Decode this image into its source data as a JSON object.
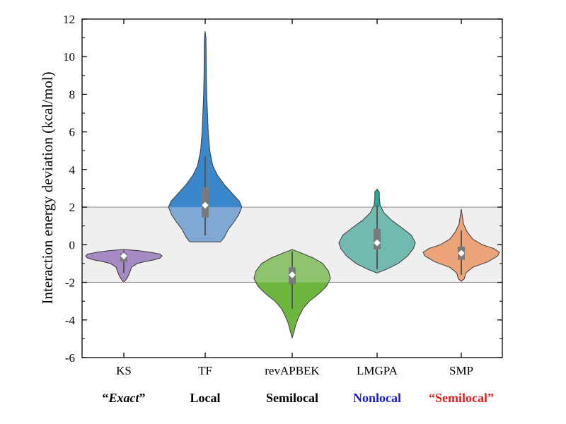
{
  "chart_data": {
    "type": "violin",
    "ylabel": "Interaction energy deviation (kcal/mol)",
    "xlabel": "",
    "ylim": [
      -6,
      12
    ],
    "yticks": [
      -6,
      -4,
      -2,
      0,
      2,
      4,
      6,
      8,
      10,
      12
    ],
    "shaded_band": [
      -2,
      2
    ],
    "categories": [
      "KS",
      "TF",
      "revAPBEK",
      "LMGPA",
      "SMP"
    ],
    "group_labels": [
      {
        "text_parts": [
          "“",
          "Exact",
          "”"
        ],
        "italic_part": 1,
        "color": "#000000"
      },
      {
        "text_parts": [
          "Local"
        ],
        "italic_part": -1,
        "color": "#000000"
      },
      {
        "text_parts": [
          "Semilocal"
        ],
        "italic_part": -1,
        "color": "#000000"
      },
      {
        "text_parts": [
          "Nonlocal"
        ],
        "italic_part": -1,
        "color": "#1a1ad8"
      },
      {
        "text_parts": [
          "“Semilocal”"
        ],
        "italic_part": -1,
        "color": "#e0201f"
      }
    ],
    "series": [
      {
        "category": "KS",
        "color": "#a58ac4",
        "color_outside": "#8f6fb8",
        "min": -1.95,
        "max": -0.25,
        "q1": -0.9,
        "median": -0.65,
        "q3": -0.45,
        "mean": -0.6,
        "whisker_low": -1.5,
        "whisker_high": -0.3,
        "density": [
          [
            -1.95,
            0.02
          ],
          [
            -1.8,
            0.08
          ],
          [
            -1.6,
            0.13
          ],
          [
            -1.4,
            0.17
          ],
          [
            -1.2,
            0.2
          ],
          [
            -1.0,
            0.35
          ],
          [
            -0.9,
            0.55
          ],
          [
            -0.8,
            0.8
          ],
          [
            -0.7,
            0.95
          ],
          [
            -0.6,
            1.0
          ],
          [
            -0.5,
            0.95
          ],
          [
            -0.4,
            0.7
          ],
          [
            -0.32,
            0.4
          ],
          [
            -0.25,
            0.0
          ]
        ]
      },
      {
        "category": "TF",
        "color": "#7fa9d4",
        "color_outside": "#3b87cc",
        "min": 0.15,
        "max": 11.35,
        "q1": 1.45,
        "median": 2.1,
        "q3": 3.05,
        "mean": 2.1,
        "whisker_low": 0.5,
        "whisker_high": 4.7,
        "density": [
          [
            0.15,
            0.4
          ],
          [
            0.4,
            0.5
          ],
          [
            0.8,
            0.6
          ],
          [
            1.2,
            0.75
          ],
          [
            1.6,
            0.88
          ],
          [
            2.0,
            0.96
          ],
          [
            2.3,
            0.9
          ],
          [
            2.7,
            0.72
          ],
          [
            3.2,
            0.5
          ],
          [
            3.7,
            0.32
          ],
          [
            4.2,
            0.2
          ],
          [
            5.0,
            0.12
          ],
          [
            6.0,
            0.08
          ],
          [
            7.0,
            0.06
          ],
          [
            8.0,
            0.04
          ],
          [
            9.0,
            0.03
          ],
          [
            10.0,
            0.025
          ],
          [
            11.0,
            0.02
          ],
          [
            11.35,
            0.0
          ]
        ]
      },
      {
        "category": "revAPBEK",
        "color": "#8fc46e",
        "color_outside": "#6db73f",
        "min": -4.95,
        "max": -0.25,
        "q1": -2.1,
        "median": -1.6,
        "q3": -1.2,
        "mean": -1.6,
        "whisker_low": -3.4,
        "whisker_high": -0.35,
        "density": [
          [
            -4.95,
            0.0
          ],
          [
            -4.6,
            0.05
          ],
          [
            -4.2,
            0.1
          ],
          [
            -3.8,
            0.18
          ],
          [
            -3.4,
            0.28
          ],
          [
            -3.0,
            0.45
          ],
          [
            -2.6,
            0.7
          ],
          [
            -2.2,
            0.9
          ],
          [
            -1.8,
            1.0
          ],
          [
            -1.4,
            0.95
          ],
          [
            -1.0,
            0.8
          ],
          [
            -0.7,
            0.55
          ],
          [
            -0.45,
            0.25
          ],
          [
            -0.25,
            0.0
          ]
        ]
      },
      {
        "category": "LMGPA",
        "color": "#72b9b0",
        "color_outside": "#2ba49a",
        "min": -1.5,
        "max": 2.95,
        "q1": -0.25,
        "median": 0.1,
        "q3": 0.85,
        "mean": 0.1,
        "whisker_low": -1.3,
        "whisker_high": 2.1,
        "density": [
          [
            -1.5,
            0.0
          ],
          [
            -1.3,
            0.25
          ],
          [
            -1.0,
            0.55
          ],
          [
            -0.6,
            0.8
          ],
          [
            -0.2,
            0.95
          ],
          [
            0.1,
            1.0
          ],
          [
            0.5,
            0.9
          ],
          [
            0.9,
            0.65
          ],
          [
            1.3,
            0.38
          ],
          [
            1.7,
            0.18
          ],
          [
            2.1,
            0.08
          ],
          [
            2.5,
            0.06
          ],
          [
            2.8,
            0.06
          ],
          [
            2.95,
            0.0
          ]
        ]
      },
      {
        "category": "SMP",
        "color": "#eda378",
        "color_outside": "#e5894f",
        "min": -1.95,
        "max": 1.9,
        "q1": -0.8,
        "median": -0.45,
        "q3": -0.1,
        "mean": -0.45,
        "whisker_low": -1.6,
        "whisker_high": 0.75,
        "density": [
          [
            -1.95,
            0.0
          ],
          [
            -1.8,
            0.08
          ],
          [
            -1.5,
            0.12
          ],
          [
            -1.2,
            0.3
          ],
          [
            -0.9,
            0.7
          ],
          [
            -0.6,
            0.95
          ],
          [
            -0.4,
            1.0
          ],
          [
            -0.2,
            0.85
          ],
          [
            0.0,
            0.55
          ],
          [
            0.3,
            0.3
          ],
          [
            0.7,
            0.15
          ],
          [
            1.1,
            0.06
          ],
          [
            1.5,
            0.03
          ],
          [
            1.9,
            0.0
          ]
        ]
      }
    ]
  }
}
